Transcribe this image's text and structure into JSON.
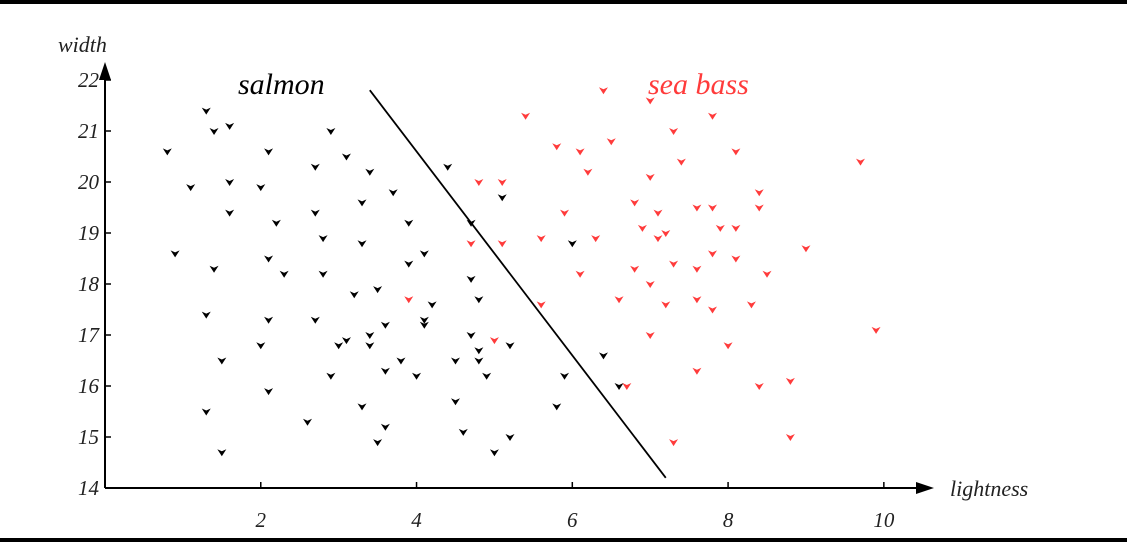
{
  "chart_data": {
    "type": "scatter",
    "xlabel": "lightness",
    "ylabel": "width",
    "xlim": [
      0,
      10.4
    ],
    "ylim": [
      14,
      22
    ],
    "x_ticks": [
      2,
      4,
      6,
      8,
      10
    ],
    "y_ticks": [
      14,
      15,
      16,
      17,
      18,
      19,
      20,
      21,
      22
    ],
    "grid": false,
    "annotations": [
      {
        "text": "salmon",
        "color": "#000000"
      },
      {
        "text": "sea bass",
        "color": "#ff3b3b"
      }
    ],
    "decision_boundary": {
      "x": [
        3.4,
        7.2
      ],
      "y": [
        21.8,
        14.2
      ]
    },
    "series": [
      {
        "color": "#000000",
        "points": [
          [
            1.3,
            21.4
          ],
          [
            1.4,
            21.0
          ],
          [
            1.6,
            21.1
          ],
          [
            0.8,
            20.6
          ],
          [
            1.1,
            19.9
          ],
          [
            1.6,
            20.0
          ],
          [
            2.1,
            20.6
          ],
          [
            2.0,
            19.9
          ],
          [
            1.6,
            19.4
          ],
          [
            0.9,
            18.6
          ],
          [
            1.4,
            18.3
          ],
          [
            2.1,
            18.5
          ],
          [
            2.2,
            19.2
          ],
          [
            2.3,
            18.2
          ],
          [
            2.9,
            21.0
          ],
          [
            2.7,
            20.3
          ],
          [
            3.1,
            20.5
          ],
          [
            2.7,
            19.4
          ],
          [
            2.8,
            18.9
          ],
          [
            2.8,
            18.2
          ],
          [
            3.3,
            19.6
          ],
          [
            3.4,
            20.2
          ],
          [
            3.3,
            18.8
          ],
          [
            3.7,
            19.8
          ],
          [
            3.2,
            17.8
          ],
          [
            3.5,
            17.9
          ],
          [
            3.9,
            19.2
          ],
          [
            4.1,
            18.6
          ],
          [
            3.9,
            18.4
          ],
          [
            4.4,
            20.3
          ],
          [
            1.3,
            17.4
          ],
          [
            2.1,
            17.3
          ],
          [
            2.7,
            17.3
          ],
          [
            2.0,
            16.8
          ],
          [
            1.5,
            16.5
          ],
          [
            1.3,
            15.5
          ],
          [
            2.1,
            15.9
          ],
          [
            1.5,
            14.7
          ],
          [
            3.0,
            16.8
          ],
          [
            3.1,
            16.9
          ],
          [
            3.4,
            17.0
          ],
          [
            3.6,
            17.2
          ],
          [
            3.4,
            16.8
          ],
          [
            2.9,
            16.2
          ],
          [
            3.6,
            16.3
          ],
          [
            3.8,
            16.5
          ],
          [
            4.0,
            16.2
          ],
          [
            4.1,
            17.2
          ],
          [
            4.1,
            17.3
          ],
          [
            4.2,
            17.6
          ],
          [
            3.3,
            15.6
          ],
          [
            3.6,
            15.2
          ],
          [
            3.5,
            14.9
          ],
          [
            2.6,
            15.3
          ],
          [
            4.5,
            16.5
          ],
          [
            4.5,
            15.7
          ],
          [
            4.6,
            15.1
          ],
          [
            4.7,
            17.0
          ],
          [
            4.7,
            18.1
          ],
          [
            4.8,
            17.7
          ],
          [
            4.8,
            16.5
          ],
          [
            4.8,
            16.7
          ],
          [
            4.9,
            16.2
          ],
          [
            4.7,
            19.2
          ],
          [
            5.1,
            19.7
          ],
          [
            5.2,
            16.8
          ],
          [
            5.0,
            14.7
          ],
          [
            5.2,
            15.0
          ],
          [
            5.8,
            15.6
          ],
          [
            5.9,
            16.2
          ],
          [
            6.0,
            18.8
          ],
          [
            6.4,
            16.6
          ],
          [
            6.6,
            16.0
          ]
        ]
      },
      {
        "color": "#ff3b3b",
        "points": [
          [
            5.4,
            21.3
          ],
          [
            5.8,
            20.7
          ],
          [
            6.1,
            20.6
          ],
          [
            6.4,
            21.8
          ],
          [
            6.5,
            20.8
          ],
          [
            7.0,
            21.6
          ],
          [
            7.3,
            21.0
          ],
          [
            7.8,
            21.3
          ],
          [
            4.8,
            20.0
          ],
          [
            5.1,
            20.0
          ],
          [
            6.2,
            20.2
          ],
          [
            7.0,
            20.1
          ],
          [
            7.4,
            20.4
          ],
          [
            8.1,
            20.6
          ],
          [
            9.7,
            20.4
          ],
          [
            8.4,
            19.8
          ],
          [
            5.9,
            19.4
          ],
          [
            6.8,
            19.6
          ],
          [
            7.1,
            19.4
          ],
          [
            7.6,
            19.5
          ],
          [
            7.8,
            19.5
          ],
          [
            8.4,
            19.5
          ],
          [
            4.7,
            18.8
          ],
          [
            5.1,
            18.8
          ],
          [
            5.6,
            18.9
          ],
          [
            6.3,
            18.9
          ],
          [
            6.9,
            19.1
          ],
          [
            7.1,
            18.9
          ],
          [
            7.2,
            19.0
          ],
          [
            7.9,
            19.1
          ],
          [
            8.1,
            19.1
          ],
          [
            9.0,
            18.7
          ],
          [
            6.1,
            18.2
          ],
          [
            6.8,
            18.3
          ],
          [
            7.3,
            18.4
          ],
          [
            7.6,
            18.3
          ],
          [
            7.8,
            18.6
          ],
          [
            8.1,
            18.5
          ],
          [
            8.5,
            18.2
          ],
          [
            7.0,
            18.0
          ],
          [
            5.6,
            17.6
          ],
          [
            6.6,
            17.7
          ],
          [
            7.2,
            17.6
          ],
          [
            7.6,
            17.7
          ],
          [
            7.8,
            17.5
          ],
          [
            8.3,
            17.6
          ],
          [
            3.9,
            17.7
          ],
          [
            7.0,
            17.0
          ],
          [
            8.0,
            16.8
          ],
          [
            9.9,
            17.1
          ],
          [
            5.0,
            16.9
          ],
          [
            6.7,
            16.0
          ],
          [
            7.6,
            16.3
          ],
          [
            8.4,
            16.0
          ],
          [
            8.8,
            16.1
          ],
          [
            7.3,
            14.9
          ],
          [
            8.8,
            15.0
          ]
        ]
      }
    ]
  }
}
